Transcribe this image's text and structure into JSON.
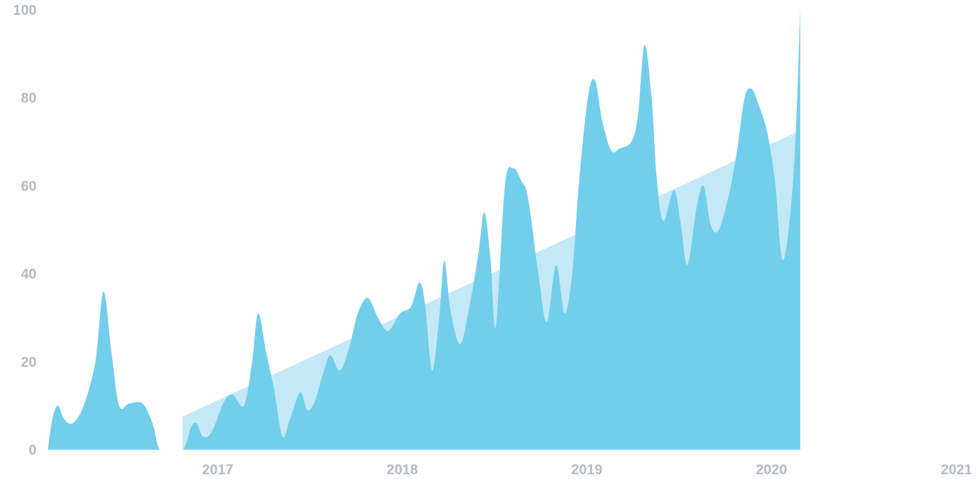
{
  "chart_data": {
    "type": "area",
    "title": "",
    "xlabel": "",
    "ylabel": "",
    "ylim": [
      0,
      100
    ],
    "xlim": [
      "2016-01-31",
      "2021-01-01"
    ],
    "yticks": [
      0,
      20,
      40,
      60,
      80,
      100
    ],
    "xticks": [
      {
        "date": "2017-01-01",
        "label": "2017"
      },
      {
        "date": "2018-01-01",
        "label": "2018"
      },
      {
        "date": "2019-01-01",
        "label": "2019"
      },
      {
        "date": "2020-01-01",
        "label": "2020"
      },
      {
        "date": "2021-01-01",
        "label": "2021"
      }
    ],
    "grid": false,
    "colors": {
      "series": "#72ceea",
      "trend": "#c4e9f6",
      "ticks": "#b3bbc8"
    },
    "series": [
      {
        "values": [
          [
            "2016-01-31",
            0
          ],
          [
            "2016-02-09",
            7
          ],
          [
            "2016-02-20",
            10
          ],
          [
            "2016-03-03",
            7
          ],
          [
            "2016-03-20",
            6
          ],
          [
            "2016-04-11",
            10
          ],
          [
            "2016-05-04",
            20
          ],
          [
            "2016-05-20",
            36
          ],
          [
            "2016-06-05",
            22
          ],
          [
            "2016-06-20",
            10
          ],
          [
            "2016-07-10",
            10.5
          ],
          [
            "2016-08-05",
            10.5
          ],
          [
            "2016-08-25",
            6
          ],
          [
            "2016-09-08",
            0
          ],
          [
            "2016-10-01",
            0
          ],
          [
            "2016-10-25",
            0
          ],
          [
            "2016-11-09",
            5
          ],
          [
            "2016-11-20",
            6
          ],
          [
            "2016-12-03",
            3
          ],
          [
            "2016-12-20",
            4
          ],
          [
            "2017-01-14",
            11
          ],
          [
            "2017-01-31",
            12.5
          ],
          [
            "2017-02-22",
            10
          ],
          [
            "2017-03-10",
            20
          ],
          [
            "2017-03-22",
            31
          ],
          [
            "2017-04-07",
            22
          ],
          [
            "2017-04-22",
            14
          ],
          [
            "2017-05-09",
            3
          ],
          [
            "2017-05-24",
            7
          ],
          [
            "2017-06-13",
            13
          ],
          [
            "2017-06-27",
            9
          ],
          [
            "2017-07-12",
            11
          ],
          [
            "2017-07-30",
            18
          ],
          [
            "2017-08-12",
            21.5
          ],
          [
            "2017-08-31",
            18
          ],
          [
            "2017-09-20",
            24
          ],
          [
            "2017-10-05",
            31
          ],
          [
            "2017-10-25",
            34.5
          ],
          [
            "2017-11-14",
            30
          ],
          [
            "2017-12-04",
            27
          ],
          [
            "2017-12-28",
            31
          ],
          [
            "2018-01-18",
            32.5
          ],
          [
            "2018-02-04",
            38
          ],
          [
            "2018-02-15",
            33
          ],
          [
            "2018-03-01",
            18
          ],
          [
            "2018-03-15",
            30
          ],
          [
            "2018-03-25",
            43
          ],
          [
            "2018-04-06",
            32
          ],
          [
            "2018-04-25",
            24
          ],
          [
            "2018-05-13",
            32
          ],
          [
            "2018-06-01",
            45
          ],
          [
            "2018-06-12",
            54
          ],
          [
            "2018-06-24",
            44
          ],
          [
            "2018-07-05",
            28
          ],
          [
            "2018-07-23",
            60
          ],
          [
            "2018-08-08",
            64
          ],
          [
            "2018-08-25",
            61
          ],
          [
            "2018-09-07",
            57
          ],
          [
            "2018-09-27",
            40
          ],
          [
            "2018-10-14",
            29
          ],
          [
            "2018-11-01",
            42
          ],
          [
            "2018-11-18",
            31
          ],
          [
            "2018-12-03",
            40
          ],
          [
            "2018-12-16",
            60
          ],
          [
            "2019-01-03",
            80
          ],
          [
            "2019-01-17",
            84
          ],
          [
            "2019-01-31",
            75
          ],
          [
            "2019-02-18",
            68
          ],
          [
            "2019-03-07",
            68.5
          ],
          [
            "2019-03-30",
            70
          ],
          [
            "2019-04-12",
            76
          ],
          [
            "2019-04-25",
            92
          ],
          [
            "2019-05-09",
            80
          ],
          [
            "2019-05-19",
            62
          ],
          [
            "2019-06-01",
            52
          ],
          [
            "2019-06-22",
            59
          ],
          [
            "2019-07-05",
            52
          ],
          [
            "2019-07-19",
            42
          ],
          [
            "2019-08-06",
            55
          ],
          [
            "2019-08-20",
            60
          ],
          [
            "2019-09-03",
            51
          ],
          [
            "2019-09-19",
            50
          ],
          [
            "2019-10-09",
            58
          ],
          [
            "2019-10-25",
            68
          ],
          [
            "2019-11-09",
            80
          ],
          [
            "2019-11-23",
            82
          ],
          [
            "2019-12-08",
            78
          ],
          [
            "2019-12-24",
            72
          ],
          [
            "2020-01-08",
            61
          ],
          [
            "2020-01-24",
            43
          ],
          [
            "2020-02-14",
            63
          ],
          [
            "2020-02-27",
            100
          ]
        ]
      },
      {
        "values": [
          [
            "2016-10-23",
            7.5
          ],
          [
            "2020-02-26",
            72.5
          ]
        ]
      }
    ]
  }
}
